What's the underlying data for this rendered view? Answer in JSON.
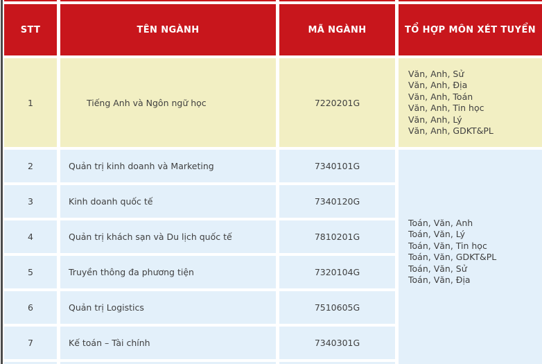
{
  "table": {
    "headers": {
      "stt": "STT",
      "nganh": "TÊN NGÀNH",
      "ma": "MÃ NGÀNH",
      "tohop": "TỔ HỢP MÔN XÉT TUYỂN"
    },
    "rows": [
      {
        "stt": "1",
        "name": "Tiếng Anh và Ngôn ngữ học",
        "code": "7220201G"
      },
      {
        "stt": "2",
        "name": "Quản trị kinh doanh và Marketing",
        "code": "7340101G"
      },
      {
        "stt": "3",
        "name": "Kinh doanh quốc tế",
        "code": "7340120G"
      },
      {
        "stt": "4",
        "name": "Quản trị khách sạn và Du lịch quốc tế",
        "code": "7810201G"
      },
      {
        "stt": "5",
        "name": "Truyền thông đa phương tiện",
        "code": "7320104G"
      },
      {
        "stt": "6",
        "name": "Quản trị Logistics",
        "code": "7510605G"
      },
      {
        "stt": "7",
        "name": "Kế toán – Tài chính",
        "code": "7340301G"
      }
    ],
    "row1_combos": [
      "Văn, Anh, Sử",
      "Văn, Anh, Địa",
      "Văn, Anh, Toán",
      "Văn, Anh, Tin học",
      "Văn, Anh, Lý",
      "Văn, Anh, GDKT&PL"
    ],
    "group_combos": [
      "Toán, Văn, Anh",
      "Toán, Văn, Lý",
      "Toán, Văn, Tin học",
      "Toán, Văn, GDKT&PL",
      "Toán, Văn, Sử",
      "Toán, Văn, Địa"
    ],
    "colors": {
      "header_red": "#c8161c",
      "row_yellow": "#f2efc3",
      "row_blue": "#e3f0fa",
      "text": "#3f3f3f"
    }
  }
}
